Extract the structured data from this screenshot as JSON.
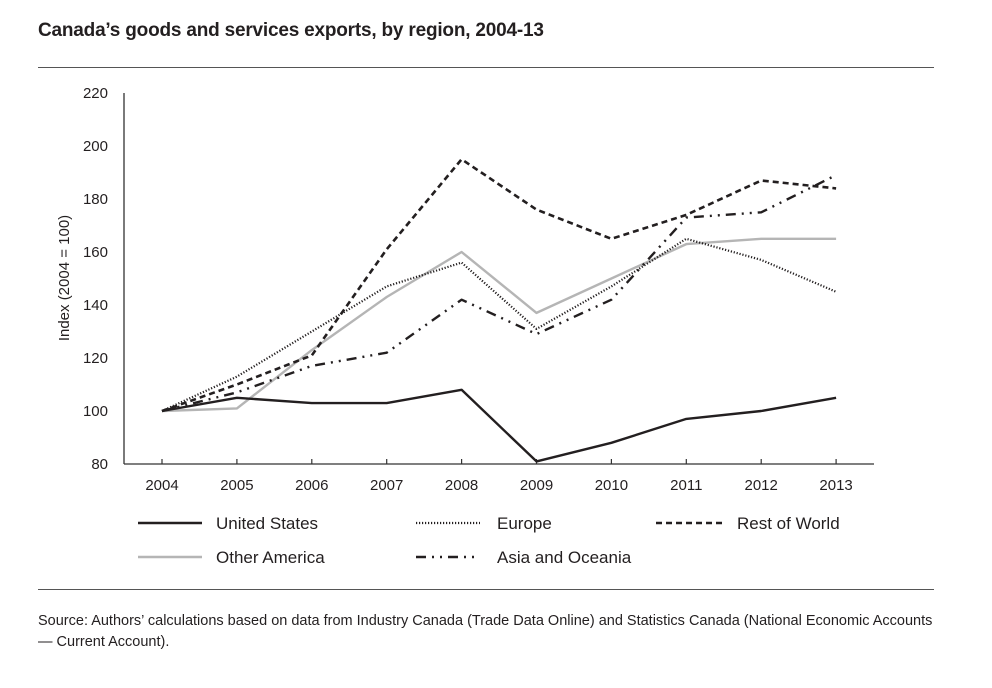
{
  "chart_data": {
    "type": "line",
    "title": "Canada’s goods and services exports, by region, 2004-13",
    "xlabel": "",
    "ylabel": "Index (2004 = 100)",
    "x": [
      "2004",
      "2005",
      "2006",
      "2007",
      "2008",
      "2009",
      "2010",
      "2011",
      "2012",
      "2013"
    ],
    "ylim": [
      80,
      220
    ],
    "yticks": [
      80,
      100,
      120,
      140,
      160,
      180,
      200,
      220
    ],
    "grid": false,
    "legend_position": "bottom",
    "series": [
      {
        "name": "United States",
        "style": "solid",
        "color": "#231f20",
        "values": [
          100,
          105,
          103,
          103,
          108,
          81,
          88,
          97,
          100,
          105
        ]
      },
      {
        "name": "Europe",
        "style": "dotted",
        "color": "#231f20",
        "values": [
          100,
          113,
          130,
          147,
          156,
          131,
          147,
          165,
          157,
          145
        ]
      },
      {
        "name": "Rest of World",
        "style": "dashed",
        "color": "#231f20",
        "values": [
          100,
          110,
          121,
          161,
          195,
          176,
          165,
          174,
          187,
          184
        ]
      },
      {
        "name": "Other America",
        "style": "solid",
        "color": "#b5b5b5",
        "values": [
          100,
          101,
          123,
          143,
          160,
          137,
          150,
          163,
          165,
          165
        ]
      },
      {
        "name": "Asia and Oceania",
        "style": "dash-dot-dot",
        "color": "#231f20",
        "values": [
          100,
          107,
          117,
          122,
          142,
          129,
          142,
          173,
          175,
          189
        ]
      }
    ],
    "source": "Source: Authors’ calculations based on data from Industry Canada (Trade Data Online) and Statistics Canada (National Economic Accounts — Current Account)."
  }
}
